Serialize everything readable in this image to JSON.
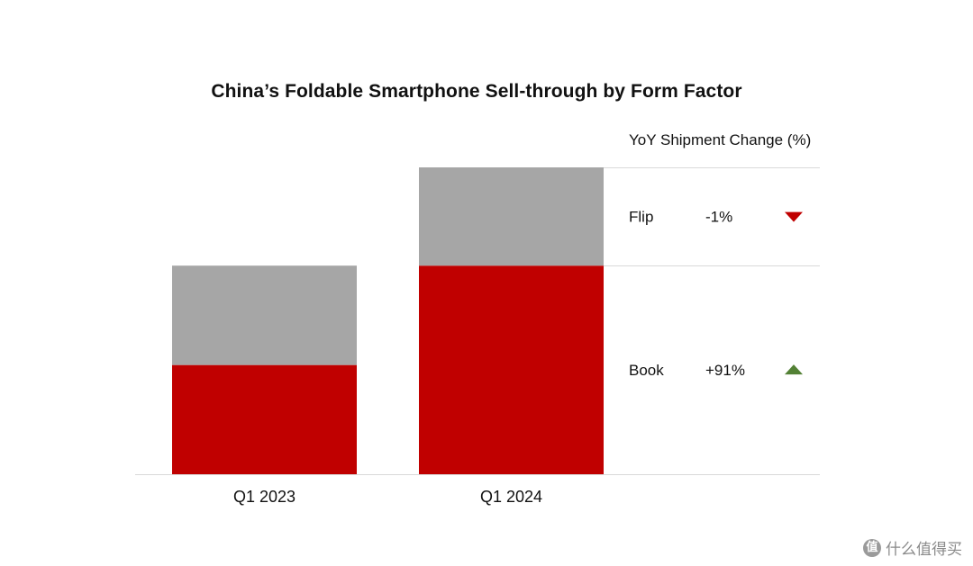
{
  "chart_data": {
    "type": "bar",
    "stacked": true,
    "title": "China’s Foldable Smartphone Sell-through by Form Factor",
    "categories": [
      "Q1 2023",
      "Q1 2024"
    ],
    "series": [
      {
        "name": "Book",
        "color": "#c00000",
        "values": [
          1.0,
          1.91
        ]
      },
      {
        "name": "Flip",
        "color": "#a6a6a6",
        "values": [
          0.91,
          0.9
        ]
      }
    ],
    "y_axis_visible": false,
    "ylim": [
      0,
      2.81
    ],
    "grid": false,
    "table": {
      "header": "YoY Shipment Change (%)",
      "rows": [
        {
          "label": "Flip",
          "value": "-1%",
          "direction": "down",
          "icon": "down-triangle-icon",
          "color": "#c00000"
        },
        {
          "label": "Book",
          "value": "+91%",
          "direction": "up",
          "icon": "up-triangle-icon",
          "color": "#538135"
        }
      ]
    }
  },
  "watermark": {
    "icon_glyph": "值",
    "text": "什么值得买"
  }
}
